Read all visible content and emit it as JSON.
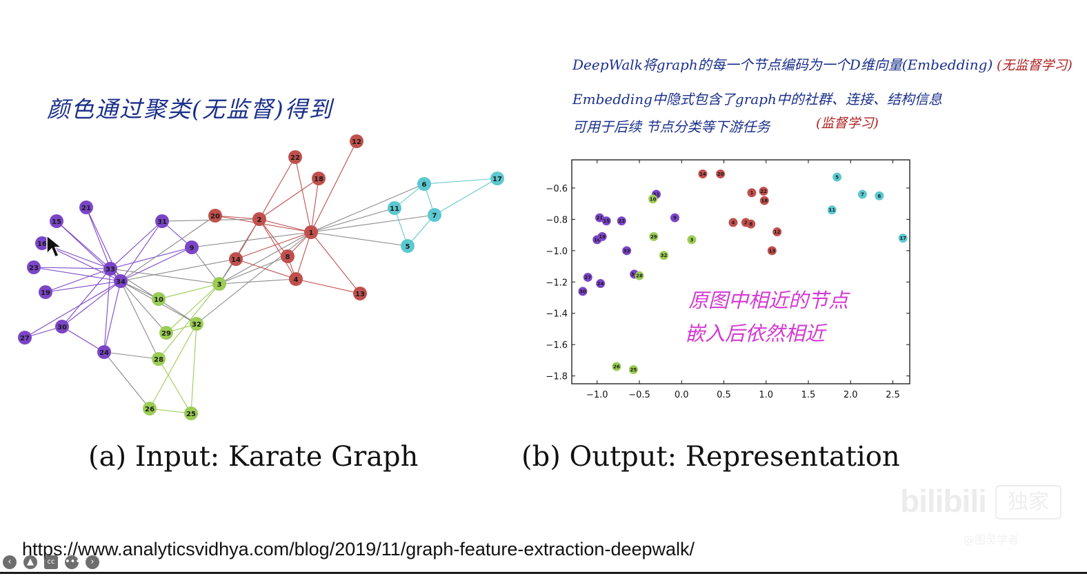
{
  "notes": {
    "left": "颜色通过聚类(无监督)得到",
    "right_line1": "DeepWalk将graph的每一个节点编码为一个D维向量(Embedding)",
    "right_line1_tag": "(无监督学习)",
    "right_line2": "Embedding中隐式包含了graph中的社群、连接、结构信息",
    "right_line3": "可用于后续 节点分类等下游任务",
    "right_line3_tag": "(监督学习)",
    "plot_annotation_line1": "原图中相近的节点",
    "plot_annotation_line2": "嵌入后依然相近"
  },
  "captions": {
    "a": "(a) Input: Karate Graph",
    "b": "(b) Output: Representation"
  },
  "source_url": "https://www.analyticsvidhya.com/blog/2019/11/graph-feature-extraction-deepwalk/",
  "colors": {
    "purple": "#7b45c8",
    "red": "#c0504d",
    "cyan": "#5cc8d0",
    "green": "#9bcc55",
    "note_blue": "#1a2f8a",
    "note_red": "#b02020",
    "annotation_magenta": "#d23ad2"
  },
  "watermark": {
    "logo": "bilibili",
    "badge": "独家",
    "sub": "@图灵学者"
  },
  "player_controls": [
    "back-icon",
    "upload-icon",
    "cc-icon",
    "more-icon",
    "forward-icon"
  ],
  "graph": {
    "nodes": [
      {
        "id": "1",
        "group": "red"
      },
      {
        "id": "2",
        "group": "red"
      },
      {
        "id": "3",
        "group": "green"
      },
      {
        "id": "4",
        "group": "red"
      },
      {
        "id": "5",
        "group": "cyan"
      },
      {
        "id": "6",
        "group": "cyan"
      },
      {
        "id": "7",
        "group": "cyan"
      },
      {
        "id": "8",
        "group": "red"
      },
      {
        "id": "9",
        "group": "purple"
      },
      {
        "id": "10",
        "group": "green"
      },
      {
        "id": "11",
        "group": "cyan"
      },
      {
        "id": "12",
        "group": "red"
      },
      {
        "id": "13",
        "group": "red"
      },
      {
        "id": "14",
        "group": "red"
      },
      {
        "id": "15",
        "group": "purple"
      },
      {
        "id": "16",
        "group": "purple"
      },
      {
        "id": "17",
        "group": "cyan"
      },
      {
        "id": "18",
        "group": "red"
      },
      {
        "id": "19",
        "group": "purple"
      },
      {
        "id": "20",
        "group": "red"
      },
      {
        "id": "21",
        "group": "purple"
      },
      {
        "id": "22",
        "group": "red"
      },
      {
        "id": "23",
        "group": "purple"
      },
      {
        "id": "24",
        "group": "purple"
      },
      {
        "id": "25",
        "group": "green"
      },
      {
        "id": "26",
        "group": "green"
      },
      {
        "id": "27",
        "group": "purple"
      },
      {
        "id": "28",
        "group": "green"
      },
      {
        "id": "29",
        "group": "green"
      },
      {
        "id": "30",
        "group": "purple"
      },
      {
        "id": "31",
        "group": "purple"
      },
      {
        "id": "32",
        "group": "green"
      },
      {
        "id": "33",
        "group": "purple"
      },
      {
        "id": "34",
        "group": "purple"
      }
    ],
    "edges": [
      [
        "1",
        "2"
      ],
      [
        "1",
        "3"
      ],
      [
        "1",
        "4"
      ],
      [
        "1",
        "5"
      ],
      [
        "1",
        "6"
      ],
      [
        "1",
        "7"
      ],
      [
        "1",
        "8"
      ],
      [
        "1",
        "9"
      ],
      [
        "1",
        "11"
      ],
      [
        "1",
        "12"
      ],
      [
        "1",
        "13"
      ],
      [
        "1",
        "14"
      ],
      [
        "1",
        "18"
      ],
      [
        "1",
        "20"
      ],
      [
        "1",
        "22"
      ],
      [
        "1",
        "32"
      ],
      [
        "2",
        "3"
      ],
      [
        "2",
        "4"
      ],
      [
        "2",
        "8"
      ],
      [
        "2",
        "14"
      ],
      [
        "2",
        "18"
      ],
      [
        "2",
        "20"
      ],
      [
        "2",
        "22"
      ],
      [
        "2",
        "31"
      ],
      [
        "3",
        "4"
      ],
      [
        "3",
        "8"
      ],
      [
        "3",
        "9"
      ],
      [
        "3",
        "10"
      ],
      [
        "3",
        "14"
      ],
      [
        "3",
        "28"
      ],
      [
        "3",
        "29"
      ],
      [
        "3",
        "33"
      ],
      [
        "4",
        "8"
      ],
      [
        "4",
        "13"
      ],
      [
        "4",
        "14"
      ],
      [
        "5",
        "7"
      ],
      [
        "5",
        "11"
      ],
      [
        "6",
        "7"
      ],
      [
        "6",
        "11"
      ],
      [
        "6",
        "17"
      ],
      [
        "7",
        "17"
      ],
      [
        "9",
        "31"
      ],
      [
        "9",
        "33"
      ],
      [
        "9",
        "34"
      ],
      [
        "10",
        "34"
      ],
      [
        "14",
        "34"
      ],
      [
        "15",
        "33"
      ],
      [
        "15",
        "34"
      ],
      [
        "16",
        "33"
      ],
      [
        "16",
        "34"
      ],
      [
        "19",
        "33"
      ],
      [
        "19",
        "34"
      ],
      [
        "20",
        "34"
      ],
      [
        "21",
        "33"
      ],
      [
        "21",
        "34"
      ],
      [
        "23",
        "33"
      ],
      [
        "23",
        "34"
      ],
      [
        "24",
        "26"
      ],
      [
        "24",
        "28"
      ],
      [
        "24",
        "30"
      ],
      [
        "24",
        "33"
      ],
      [
        "24",
        "34"
      ],
      [
        "25",
        "26"
      ],
      [
        "25",
        "28"
      ],
      [
        "25",
        "32"
      ],
      [
        "26",
        "32"
      ],
      [
        "27",
        "30"
      ],
      [
        "27",
        "34"
      ],
      [
        "28",
        "34"
      ],
      [
        "29",
        "32"
      ],
      [
        "29",
        "34"
      ],
      [
        "30",
        "33"
      ],
      [
        "30",
        "34"
      ],
      [
        "31",
        "33"
      ],
      [
        "31",
        "34"
      ],
      [
        "32",
        "33"
      ],
      [
        "32",
        "34"
      ],
      [
        "33",
        "34"
      ]
    ]
  },
  "chart_data": {
    "type": "scatter",
    "title": "",
    "xlabel": "",
    "ylabel": "",
    "xlim": [
      -1.3,
      2.7
    ],
    "ylim": [
      -1.85,
      -0.42
    ],
    "xticks": [
      "−1.0",
      "−0.5",
      "0.0",
      "0.5",
      "1.0",
      "1.5",
      "2.0",
      "2.5"
    ],
    "xtick_values": [
      -1.0,
      -0.5,
      0.0,
      0.5,
      1.0,
      1.5,
      2.0,
      2.5
    ],
    "yticks": [
      "−0.6",
      "−0.8",
      "−1.0",
      "−1.2",
      "−1.4",
      "−1.6",
      "−1.8"
    ],
    "ytick_values": [
      -0.6,
      -0.8,
      -1.0,
      -1.2,
      -1.4,
      -1.6,
      -1.8
    ],
    "points": [
      {
        "label": "14",
        "x": 0.25,
        "y": -0.51,
        "group": "red"
      },
      {
        "label": "20",
        "x": 0.46,
        "y": -0.51,
        "group": "red"
      },
      {
        "label": "1",
        "x": 0.83,
        "y": -0.63,
        "group": "red"
      },
      {
        "label": "22",
        "x": 0.97,
        "y": -0.62,
        "group": "red"
      },
      {
        "label": "18",
        "x": 0.98,
        "y": -0.68,
        "group": "red"
      },
      {
        "label": "4",
        "x": 0.61,
        "y": -0.82,
        "group": "red"
      },
      {
        "label": "2",
        "x": 0.76,
        "y": -0.82,
        "group": "red"
      },
      {
        "label": "8",
        "x": 0.82,
        "y": -0.83,
        "group": "red"
      },
      {
        "label": "12",
        "x": 1.13,
        "y": -0.88,
        "group": "red"
      },
      {
        "label": "13",
        "x": 1.07,
        "y": -1.0,
        "group": "red"
      },
      {
        "label": "5",
        "x": 1.84,
        "y": -0.53,
        "group": "cyan"
      },
      {
        "label": "7",
        "x": 2.14,
        "y": -0.64,
        "group": "cyan"
      },
      {
        "label": "6",
        "x": 2.34,
        "y": -0.65,
        "group": "cyan"
      },
      {
        "label": "11",
        "x": 1.78,
        "y": -0.74,
        "group": "cyan"
      },
      {
        "label": "17",
        "x": 2.62,
        "y": -0.92,
        "group": "cyan"
      },
      {
        "label": "31",
        "x": -0.3,
        "y": -0.64,
        "group": "purple"
      },
      {
        "label": "9",
        "x": -0.08,
        "y": -0.79,
        "group": "purple"
      },
      {
        "label": "21",
        "x": -0.97,
        "y": -0.79,
        "group": "purple"
      },
      {
        "label": "15",
        "x": -0.89,
        "y": -0.81,
        "group": "purple"
      },
      {
        "label": "23",
        "x": -0.71,
        "y": -0.81,
        "group": "purple"
      },
      {
        "label": "16",
        "x": -1.0,
        "y": -0.93,
        "group": "purple"
      },
      {
        "label": "19",
        "x": -0.94,
        "y": -0.91,
        "group": "purple"
      },
      {
        "label": "33",
        "x": -0.65,
        "y": -1.0,
        "group": "purple"
      },
      {
        "label": "34",
        "x": -0.56,
        "y": -1.15,
        "group": "purple"
      },
      {
        "label": "27",
        "x": -1.11,
        "y": -1.17,
        "group": "purple"
      },
      {
        "label": "24",
        "x": -0.96,
        "y": -1.21,
        "group": "purple"
      },
      {
        "label": "30",
        "x": -1.17,
        "y": -1.26,
        "group": "purple"
      },
      {
        "label": "10",
        "x": -0.34,
        "y": -0.67,
        "group": "green"
      },
      {
        "label": "29",
        "x": -0.33,
        "y": -0.91,
        "group": "green"
      },
      {
        "label": "32",
        "x": -0.21,
        "y": -1.03,
        "group": "green"
      },
      {
        "label": "3",
        "x": 0.12,
        "y": -0.93,
        "group": "green"
      },
      {
        "label": "28",
        "x": -0.5,
        "y": -1.16,
        "group": "green"
      },
      {
        "label": "26",
        "x": -0.77,
        "y": -1.74,
        "group": "green"
      },
      {
        "label": "25",
        "x": -0.57,
        "y": -1.76,
        "group": "green"
      }
    ]
  }
}
